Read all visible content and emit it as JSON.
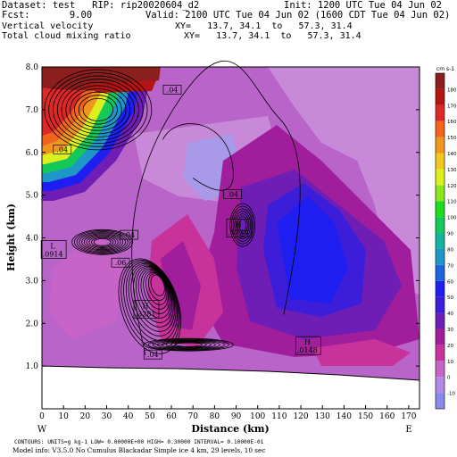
{
  "header": {
    "dataset_line": "Dataset: test   RIP: rip20020604_d2",
    "init_line": "Init: 1200 UTC Tue 04 Jun 02",
    "fcst_line": "Fcst:       9.00",
    "valid_line": "Valid: 2100 UTC Tue 04 Jun 02 (1600 CDT Tue 04 Jun 02)",
    "field1_name": "Vertical velocity",
    "field1_xy": "XY=   13.7, 34.1  to   57.3, 31.4",
    "field2_name": "Total cloud mixing ratio",
    "field2_xy": "XY=   13.7, 34.1  to   57.3, 31.4"
  },
  "footer": {
    "contours_line": "CONTOURS:  UNITS=g kg-1    LOW= 0.00000E+00  HIGH= 0.30000        INTERVAL=  0.10000E-01",
    "model_line": "Model info: V3.5.0 No Cumulus Blackadar  Simple ice     4 km,   29 levels,   10 sec"
  },
  "colors": {
    "background_magenta": "#b864c8",
    "terrain": "#ffffff",
    "contour": "#000000"
  },
  "chart_data": {
    "type": "heatmap",
    "title": "",
    "xlabel": "Distance (km)",
    "ylabel": "Height (km)",
    "xlim": [
      0,
      175
    ],
    "ylim": [
      0.0,
      8.0
    ],
    "x_ticks": [
      0,
      10,
      20,
      30,
      40,
      50,
      60,
      70,
      80,
      90,
      100,
      110,
      120,
      130,
      140,
      150,
      160,
      170
    ],
    "y_ticks": [
      1.0,
      2.0,
      3.0,
      4.0,
      5.0,
      6.0,
      7.0,
      8.0
    ],
    "y_tick_labels": [
      "1.0",
      "2.0",
      "3.0",
      "4.0",
      "5.0",
      "6.0",
      "7.0",
      "8.0"
    ],
    "x_end_labels": {
      "left": "W",
      "right": "E"
    },
    "colorbar": {
      "unit": "cm s-1",
      "levels": [
        -10,
        0,
        10,
        20,
        30,
        40,
        50,
        60,
        70,
        80,
        90,
        100,
        110,
        120,
        130,
        140,
        150,
        160,
        170,
        180
      ],
      "colors": [
        "#8a8aee",
        "#b48ae8",
        "#c864c8",
        "#c8329b",
        "#a01e9b",
        "#6e1eb4",
        "#3c1eda",
        "#1e1ef0",
        "#1e64dc",
        "#1e96c8",
        "#14b4a0",
        "#14c85a",
        "#1edc1e",
        "#8ce61e",
        "#dcf01e",
        "#f0c81e",
        "#f0961e",
        "#f0641e",
        "#dc2828",
        "#b41414",
        "#8c1e1e"
      ]
    },
    "contour_labels": [
      {
        "x": 9,
        "y": 6.05,
        "text": ".04"
      },
      {
        "x": 60,
        "y": 7.45,
        "text": ".04"
      },
      {
        "x": 40,
        "y": 4.05,
        "text": ".04"
      },
      {
        "x": 36,
        "y": 3.4,
        "text": ".06"
      },
      {
        "x": 51,
        "y": 1.25,
        "text": ".04"
      },
      {
        "x": 88,
        "y": 5.0,
        "text": ".04"
      }
    ],
    "extrema": [
      {
        "kind": "L",
        "x": 5,
        "y": 3.75,
        "value": ".0914"
      },
      {
        "kind": "H",
        "x": 48,
        "y": 2.35,
        "value": ".3281"
      },
      {
        "kind": "H",
        "x": 91,
        "y": 4.25,
        "value": ".0739"
      },
      {
        "kind": "H",
        "x": 123,
        "y": 1.5,
        "value": ".0148"
      }
    ]
  }
}
